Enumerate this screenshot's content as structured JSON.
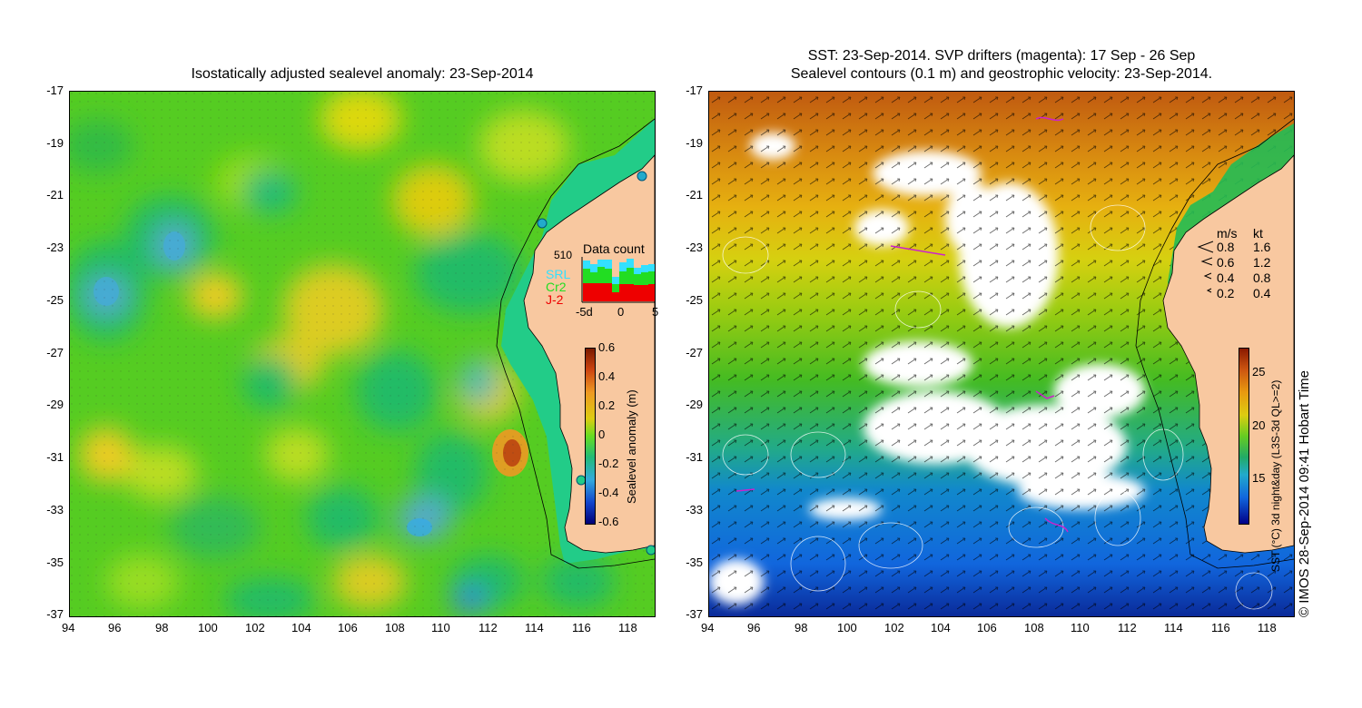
{
  "left_panel": {
    "title": "Isostatically adjusted sealevel anomaly: 23-Sep-2014",
    "x_ticks": [
      "94",
      "96",
      "98",
      "100",
      "102",
      "104",
      "106",
      "108",
      "110",
      "112",
      "114",
      "116",
      "118"
    ],
    "y_ticks": [
      "-17",
      "-19",
      "-21",
      "-23",
      "-25",
      "-27",
      "-29",
      "-31",
      "-33",
      "-35",
      "-37"
    ],
    "data_count": {
      "max_label": "510",
      "title": "Data count",
      "legend": [
        {
          "label": "SRL",
          "color": "#33e0ff"
        },
        {
          "label": "Cr2",
          "color": "#22dd22"
        },
        {
          "label": "J-2",
          "color": "#ee0000"
        }
      ],
      "x_ticks": [
        "-5d",
        "0",
        "5"
      ]
    },
    "colorbar": {
      "label": "Sealevel anomaly (m)",
      "ticks": [
        "0.6",
        "0.4",
        "0.2",
        "0",
        "-0.2",
        "-0.4",
        "-0.6"
      ]
    }
  },
  "right_panel": {
    "title_line1": "SST: 23-Sep-2014. SVP drifters (magenta): 17 Sep - 26 Sep",
    "title_line2": "Sealevel contours (0.1 m) and geostrophic velocity: 23-Sep-2014.",
    "x_ticks": [
      "94",
      "96",
      "98",
      "100",
      "102",
      "104",
      "106",
      "108",
      "110",
      "112",
      "114",
      "116",
      "118"
    ],
    "y_ticks": [
      "-17",
      "-19",
      "-21",
      "-23",
      "-25",
      "-27",
      "-29",
      "-31",
      "-33",
      "-35",
      "-37"
    ],
    "velocity_legend": {
      "header_ms": "m/s",
      "header_kt": "kt",
      "rows": [
        {
          "ms": "0.8",
          "kt": "1.6"
        },
        {
          "ms": "0.6",
          "kt": "1.2"
        },
        {
          "ms": "0.4",
          "kt": "0.8"
        },
        {
          "ms": "0.2",
          "kt": "0.4"
        }
      ]
    },
    "colorbar": {
      "label": "SST (°C) 3d night&day (L3S-3d QL>=2)",
      "ticks": [
        "25",
        "20",
        "15"
      ]
    }
  },
  "credit": "© IMOS 28-Sep-2014 09:41 Hobart Time",
  "colors": {
    "land": "#f8c8a0",
    "ocean_mid": "#44cc22",
    "white_cloud": "#ffffff"
  }
}
